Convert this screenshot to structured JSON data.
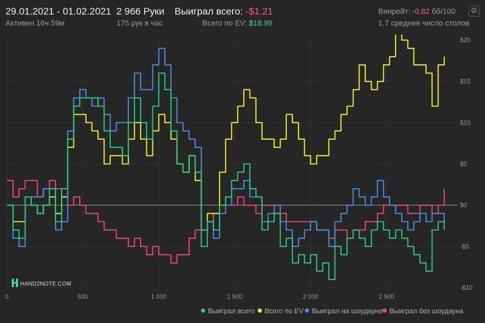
{
  "header": {
    "date_range": "29.01.2021 - 01.02.2021",
    "active_time": "Активен 16ч 59м",
    "hands": "2 966 Руки",
    "hands_per_hour": "175 рук в час",
    "won_total_label": "Выиграл всего:",
    "won_total_value": "-$1.21",
    "ev_total_label": "Всего по EV:",
    "ev_total_value": "$18.99",
    "winrate_label": "Винрейт:",
    "winrate_value": "-0.82",
    "winrate_unit": "бб/100",
    "avg_tables": "1.7 среднее число столов"
  },
  "logo_text": "HAND2NOTE.COM",
  "colors": {
    "background": "#262626",
    "grid": "#333333",
    "zero_line": "#8a8a8a",
    "won_total": "#2ecc80",
    "ev_total": "#f0f03a",
    "showdown": "#4a90e2",
    "non_showdown": "#f0467a"
  },
  "legend": [
    {
      "label": "Выиграл всего",
      "color": "#2ecc80"
    },
    {
      "label": "Всего по EV",
      "color": "#f0f03a"
    },
    {
      "label": "Выиграл на шоудауне",
      "color": "#4a90e2"
    },
    {
      "label": "Выиграл без шоудауна",
      "color": "#f0467a"
    }
  ],
  "chart_data": {
    "type": "line",
    "xlim": [
      0,
      2966
    ],
    "ylim": [
      -10,
      20
    ],
    "x_ticks": [
      0,
      500,
      1000,
      1500,
      2000,
      2500
    ],
    "x_tick_labels": [
      "0",
      "500",
      "1 000",
      "1 500",
      "2 000",
      "2 500"
    ],
    "y_ticks": [
      -10,
      -5,
      0,
      5,
      10,
      15,
      20
    ],
    "y_tick_labels": [
      "-$10",
      "-$5",
      "$0",
      "$5",
      "$10",
      "$15",
      "$20"
    ],
    "grid": true,
    "legend_position": "bottom-right",
    "series": [
      {
        "name": "Выиграл всего",
        "color": "#2ecc80",
        "x": [
          0,
          40,
          80,
          120,
          160,
          200,
          240,
          280,
          320,
          360,
          400,
          440,
          480,
          520,
          560,
          600,
          640,
          680,
          720,
          760,
          800,
          840,
          880,
          920,
          960,
          1000,
          1040,
          1080,
          1120,
          1160,
          1200,
          1240,
          1280,
          1320,
          1360,
          1400,
          1440,
          1480,
          1520,
          1560,
          1600,
          1640,
          1680,
          1720,
          1760,
          1800,
          1840,
          1880,
          1920,
          1960,
          2000,
          2040,
          2080,
          2120,
          2160,
          2200,
          2240,
          2280,
          2320,
          2360,
          2400,
          2440,
          2480,
          2520,
          2560,
          2600,
          2640,
          2680,
          2720,
          2760,
          2800,
          2840,
          2880
        ],
        "y": [
          0,
          -3,
          -4,
          1,
          0,
          -1,
          0,
          2,
          -2,
          2,
          8,
          12,
          13,
          13,
          13,
          12,
          9,
          7,
          7,
          6,
          10,
          13,
          10,
          8,
          12,
          16,
          14,
          9,
          5,
          4,
          6,
          4,
          -5,
          -2,
          -3,
          0,
          1,
          3,
          4,
          5,
          2,
          1,
          -3,
          -2,
          -1,
          -5,
          -4,
          -7,
          -6,
          -7,
          -6,
          -8,
          -7,
          -9,
          -5,
          -6,
          -4,
          -3,
          -4,
          -5,
          -3,
          -2,
          -3,
          -4,
          -3,
          -4,
          -5,
          -6,
          -7,
          -8,
          -3,
          -2,
          -3
        ]
      },
      {
        "name": "Всего по EV",
        "color": "#f0f03a",
        "x": [
          0,
          40,
          80,
          120,
          160,
          200,
          240,
          280,
          320,
          360,
          400,
          440,
          480,
          520,
          560,
          600,
          640,
          680,
          720,
          760,
          800,
          840,
          880,
          920,
          960,
          1000,
          1040,
          1080,
          1120,
          1160,
          1200,
          1240,
          1280,
          1320,
          1360,
          1400,
          1440,
          1480,
          1520,
          1560,
          1600,
          1640,
          1680,
          1720,
          1760,
          1800,
          1840,
          1880,
          1920,
          1960,
          2000,
          2040,
          2080,
          2120,
          2160,
          2200,
          2240,
          2280,
          2320,
          2360,
          2400,
          2440,
          2480,
          2520,
          2560,
          2600,
          2640,
          2680,
          2720,
          2760,
          2800,
          2840,
          2880
        ],
        "y": [
          0,
          -2,
          -2,
          0,
          0,
          -1,
          0,
          1,
          -1,
          1,
          7,
          11,
          11,
          10,
          9,
          8,
          5,
          6,
          6,
          5,
          8,
          10,
          8,
          6,
          9,
          11,
          10,
          8,
          5,
          4,
          6,
          3,
          -3,
          -1,
          -1,
          4,
          8,
          10,
          12,
          14,
          13,
          10,
          8,
          8,
          7,
          8,
          11,
          10,
          8,
          6,
          5,
          6,
          6,
          8,
          9,
          11,
          12,
          14,
          17,
          15,
          14,
          15,
          17,
          18,
          21,
          20,
          19,
          17,
          17,
          16,
          12,
          17,
          18
        ]
      },
      {
        "name": "Выиграл на шоудауне",
        "color": "#4a90e2",
        "x": [
          0,
          40,
          80,
          120,
          160,
          200,
          240,
          280,
          320,
          360,
          400,
          440,
          480,
          520,
          560,
          600,
          640,
          680,
          720,
          760,
          800,
          840,
          880,
          920,
          960,
          1000,
          1040,
          1080,
          1120,
          1160,
          1200,
          1240,
          1280,
          1320,
          1360,
          1400,
          1440,
          1480,
          1520,
          1560,
          1600,
          1640,
          1680,
          1720,
          1760,
          1800,
          1840,
          1880,
          1920,
          1960,
          2000,
          2040,
          2080,
          2120,
          2160,
          2200,
          2240,
          2280,
          2320,
          2360,
          2400,
          2440,
          2480,
          2520,
          2560,
          2600,
          2640,
          2680,
          2720,
          2760,
          2800,
          2840,
          2880
        ],
        "y": [
          0,
          -4,
          -5,
          0,
          1,
          1,
          2,
          2,
          -3,
          -2,
          9,
          13,
          14,
          13,
          12,
          13,
          11,
          9,
          10,
          10,
          13,
          16,
          14,
          14,
          17,
          19,
          17,
          13,
          10,
          9,
          8,
          7,
          -3,
          -2,
          -4,
          -1,
          0,
          2,
          2,
          3,
          1,
          1,
          -2,
          -1,
          0,
          -2,
          -3,
          -5,
          -4,
          -3,
          -2,
          -3,
          -3,
          -5,
          -2,
          -1,
          0,
          2,
          1,
          0,
          1,
          3,
          1,
          0,
          -1,
          -2,
          -3,
          -2,
          -1,
          -2,
          -1,
          -1,
          -2
        ]
      },
      {
        "name": "Выиграл без шоудауна",
        "color": "#f0467a",
        "x": [
          0,
          40,
          80,
          120,
          160,
          200,
          240,
          280,
          320,
          360,
          400,
          440,
          480,
          520,
          560,
          600,
          640,
          680,
          720,
          760,
          800,
          840,
          880,
          920,
          960,
          1000,
          1040,
          1080,
          1120,
          1160,
          1200,
          1240,
          1280,
          1320,
          1360,
          1400,
          1440,
          1480,
          1520,
          1560,
          1600,
          1640,
          1680,
          1720,
          1760,
          1800,
          1840,
          1880,
          1920,
          1960,
          2000,
          2040,
          2080,
          2120,
          2160,
          2200,
          2240,
          2280,
          2320,
          2360,
          2400,
          2440,
          2480,
          2520,
          2560,
          2600,
          2640,
          2680,
          2720,
          2760,
          2800,
          2840,
          2880
        ],
        "y": [
          3,
          1,
          2,
          3,
          3,
          1,
          2,
          3,
          2,
          1,
          0,
          1,
          0,
          -1,
          -1,
          -2,
          -3,
          -3,
          -4,
          -4,
          -5,
          -4,
          -5,
          -6,
          -5,
          -6,
          -6,
          -7,
          -6,
          -6,
          -4,
          -3,
          -3,
          -2,
          -1,
          0,
          1,
          0,
          1,
          0,
          0,
          -1,
          0,
          0,
          -1,
          -1,
          -2,
          -2,
          -2,
          -2,
          -2,
          -3,
          -3,
          -4,
          -3,
          -3,
          -4,
          -3,
          -3,
          -2,
          -2,
          -1,
          0,
          0,
          0,
          0,
          -1,
          -1,
          0,
          0,
          -1,
          0,
          2
        ]
      }
    ]
  }
}
